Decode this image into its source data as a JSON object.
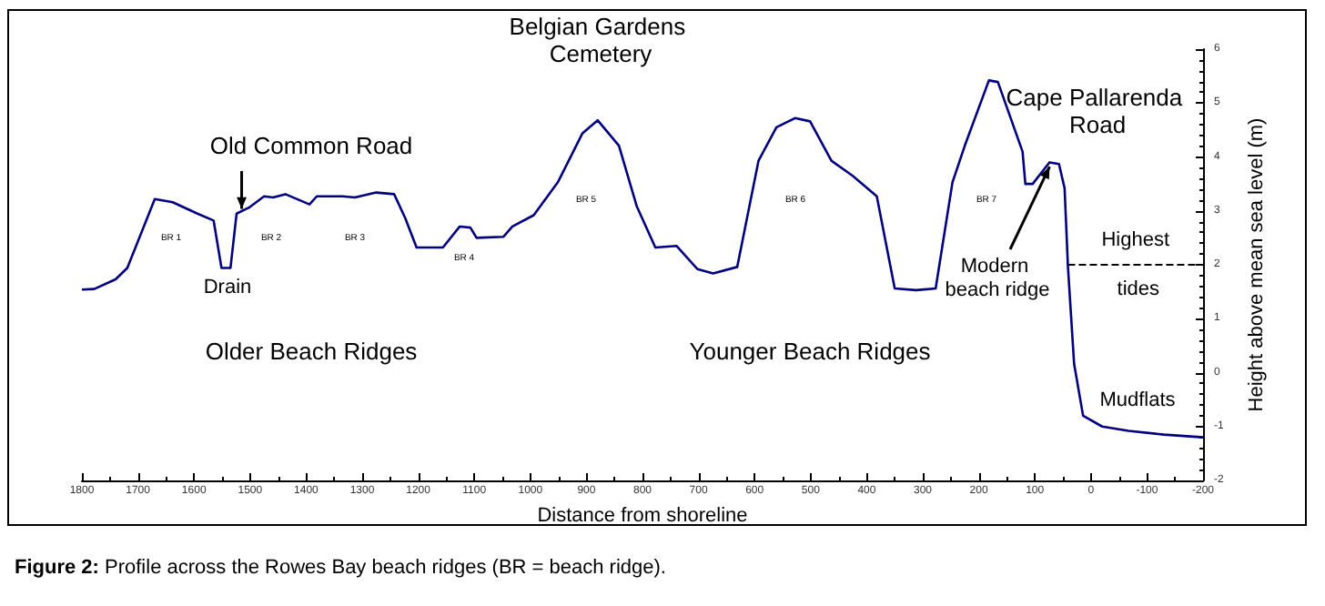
{
  "chart_data": {
    "type": "line",
    "xlabel": "Distance from shoreline",
    "ylabel": "Height above mean sea level (m)",
    "x": [
      1800,
      1778,
      1740,
      1719,
      1670,
      1638,
      1594,
      1565,
      1551,
      1535,
      1524,
      1502,
      1475,
      1459,
      1437,
      1394,
      1381,
      1335,
      1313,
      1275,
      1243,
      1223,
      1203,
      1156,
      1126,
      1107,
      1096,
      1048,
      1032,
      994,
      951,
      907,
      880,
      842,
      810,
      777,
      739,
      702,
      674,
      631,
      593,
      561,
      528,
      501,
      463,
      425,
      382,
      350,
      312,
      277,
      247,
      225,
      182,
      166,
      122,
      117,
      104,
      74,
      57,
      47,
      41,
      30,
      14,
      -20,
      -67,
      -130,
      -200
    ],
    "series": [
      {
        "color": "#000080",
        "values": [
          1.54,
          1.55,
          1.73,
          1.94,
          3.22,
          3.16,
          2.95,
          2.82,
          1.94,
          1.94,
          2.95,
          3.06,
          3.27,
          3.25,
          3.31,
          3.12,
          3.27,
          3.27,
          3.25,
          3.34,
          3.31,
          2.86,
          2.32,
          2.32,
          2.71,
          2.69,
          2.5,
          2.52,
          2.71,
          2.92,
          3.53,
          4.44,
          4.68,
          4.21,
          3.08,
          2.32,
          2.35,
          1.92,
          1.84,
          1.96,
          3.93,
          4.55,
          4.72,
          4.66,
          3.93,
          3.65,
          3.27,
          1.56,
          1.53,
          1.56,
          3.53,
          4.21,
          5.42,
          5.39,
          4.1,
          3.5,
          3.5,
          3.9,
          3.87,
          3.42,
          1.96,
          0.16,
          -0.8,
          -1.0,
          -1.08,
          -1.15,
          -1.2
        ]
      }
    ],
    "xlim": [
      1800,
      -200
    ],
    "xticks": [
      1800,
      1700,
      1600,
      1500,
      1400,
      1300,
      1200,
      1100,
      1000,
      900,
      800,
      700,
      600,
      500,
      400,
      300,
      200,
      100,
      0,
      -100,
      -200
    ],
    "ylim": [
      -2,
      6
    ],
    "yticks": [
      -2,
      -1,
      0,
      1,
      2,
      3,
      4,
      5,
      6
    ],
    "ref_lines": [
      {
        "axis": "y",
        "value": 2,
        "label": "Highest tides",
        "line_style": "dashed",
        "color": "#000000"
      }
    ],
    "annotations": [
      {
        "text": "Old Common Road",
        "x": 1515,
        "y": 3.0
      },
      "Drain",
      "BR 1",
      "BR 2",
      "BR 3",
      "BR 4",
      "BR 5",
      "BR 6",
      "BR 7",
      "Belgian Gardens Cemetery",
      "Cape Pallarenda Road",
      {
        "text": "Modern beach ridge",
        "x": 70,
        "y": 3.9
      },
      "Older Beach Ridges",
      "Younger Beach Ridges",
      "Mudflats",
      "Figure 2: Profile across the Rowes Bay beach ridges (BR = beach ridge)."
    ],
    "grid": false,
    "marker": "none",
    "line_style": "solid"
  }
}
